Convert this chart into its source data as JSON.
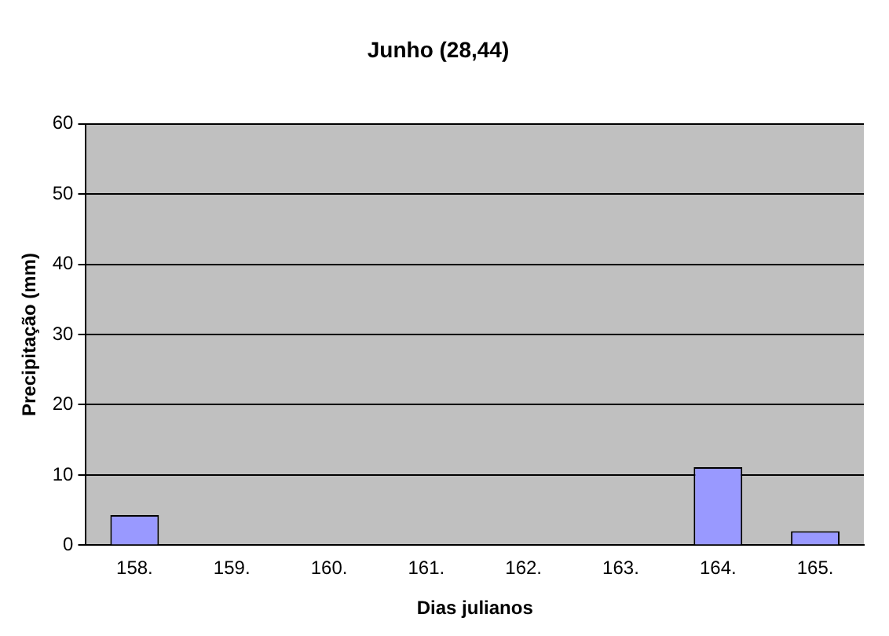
{
  "chart_data": {
    "type": "bar",
    "title": "Junho (28,44)",
    "xlabel": "Dias julianos",
    "ylabel": "Precipitação (mm)",
    "categories": [
      "158.",
      "159.",
      "160.",
      "161.",
      "162.",
      "163.",
      "164.",
      "165."
    ],
    "values": [
      4.3,
      0,
      0,
      0,
      0,
      0,
      11.1,
      2
    ],
    "color": "#9999ff",
    "ylim": [
      0,
      60
    ],
    "yticks": [
      0,
      10,
      20,
      30,
      40,
      50,
      60
    ],
    "grid": "y",
    "legend": false
  }
}
